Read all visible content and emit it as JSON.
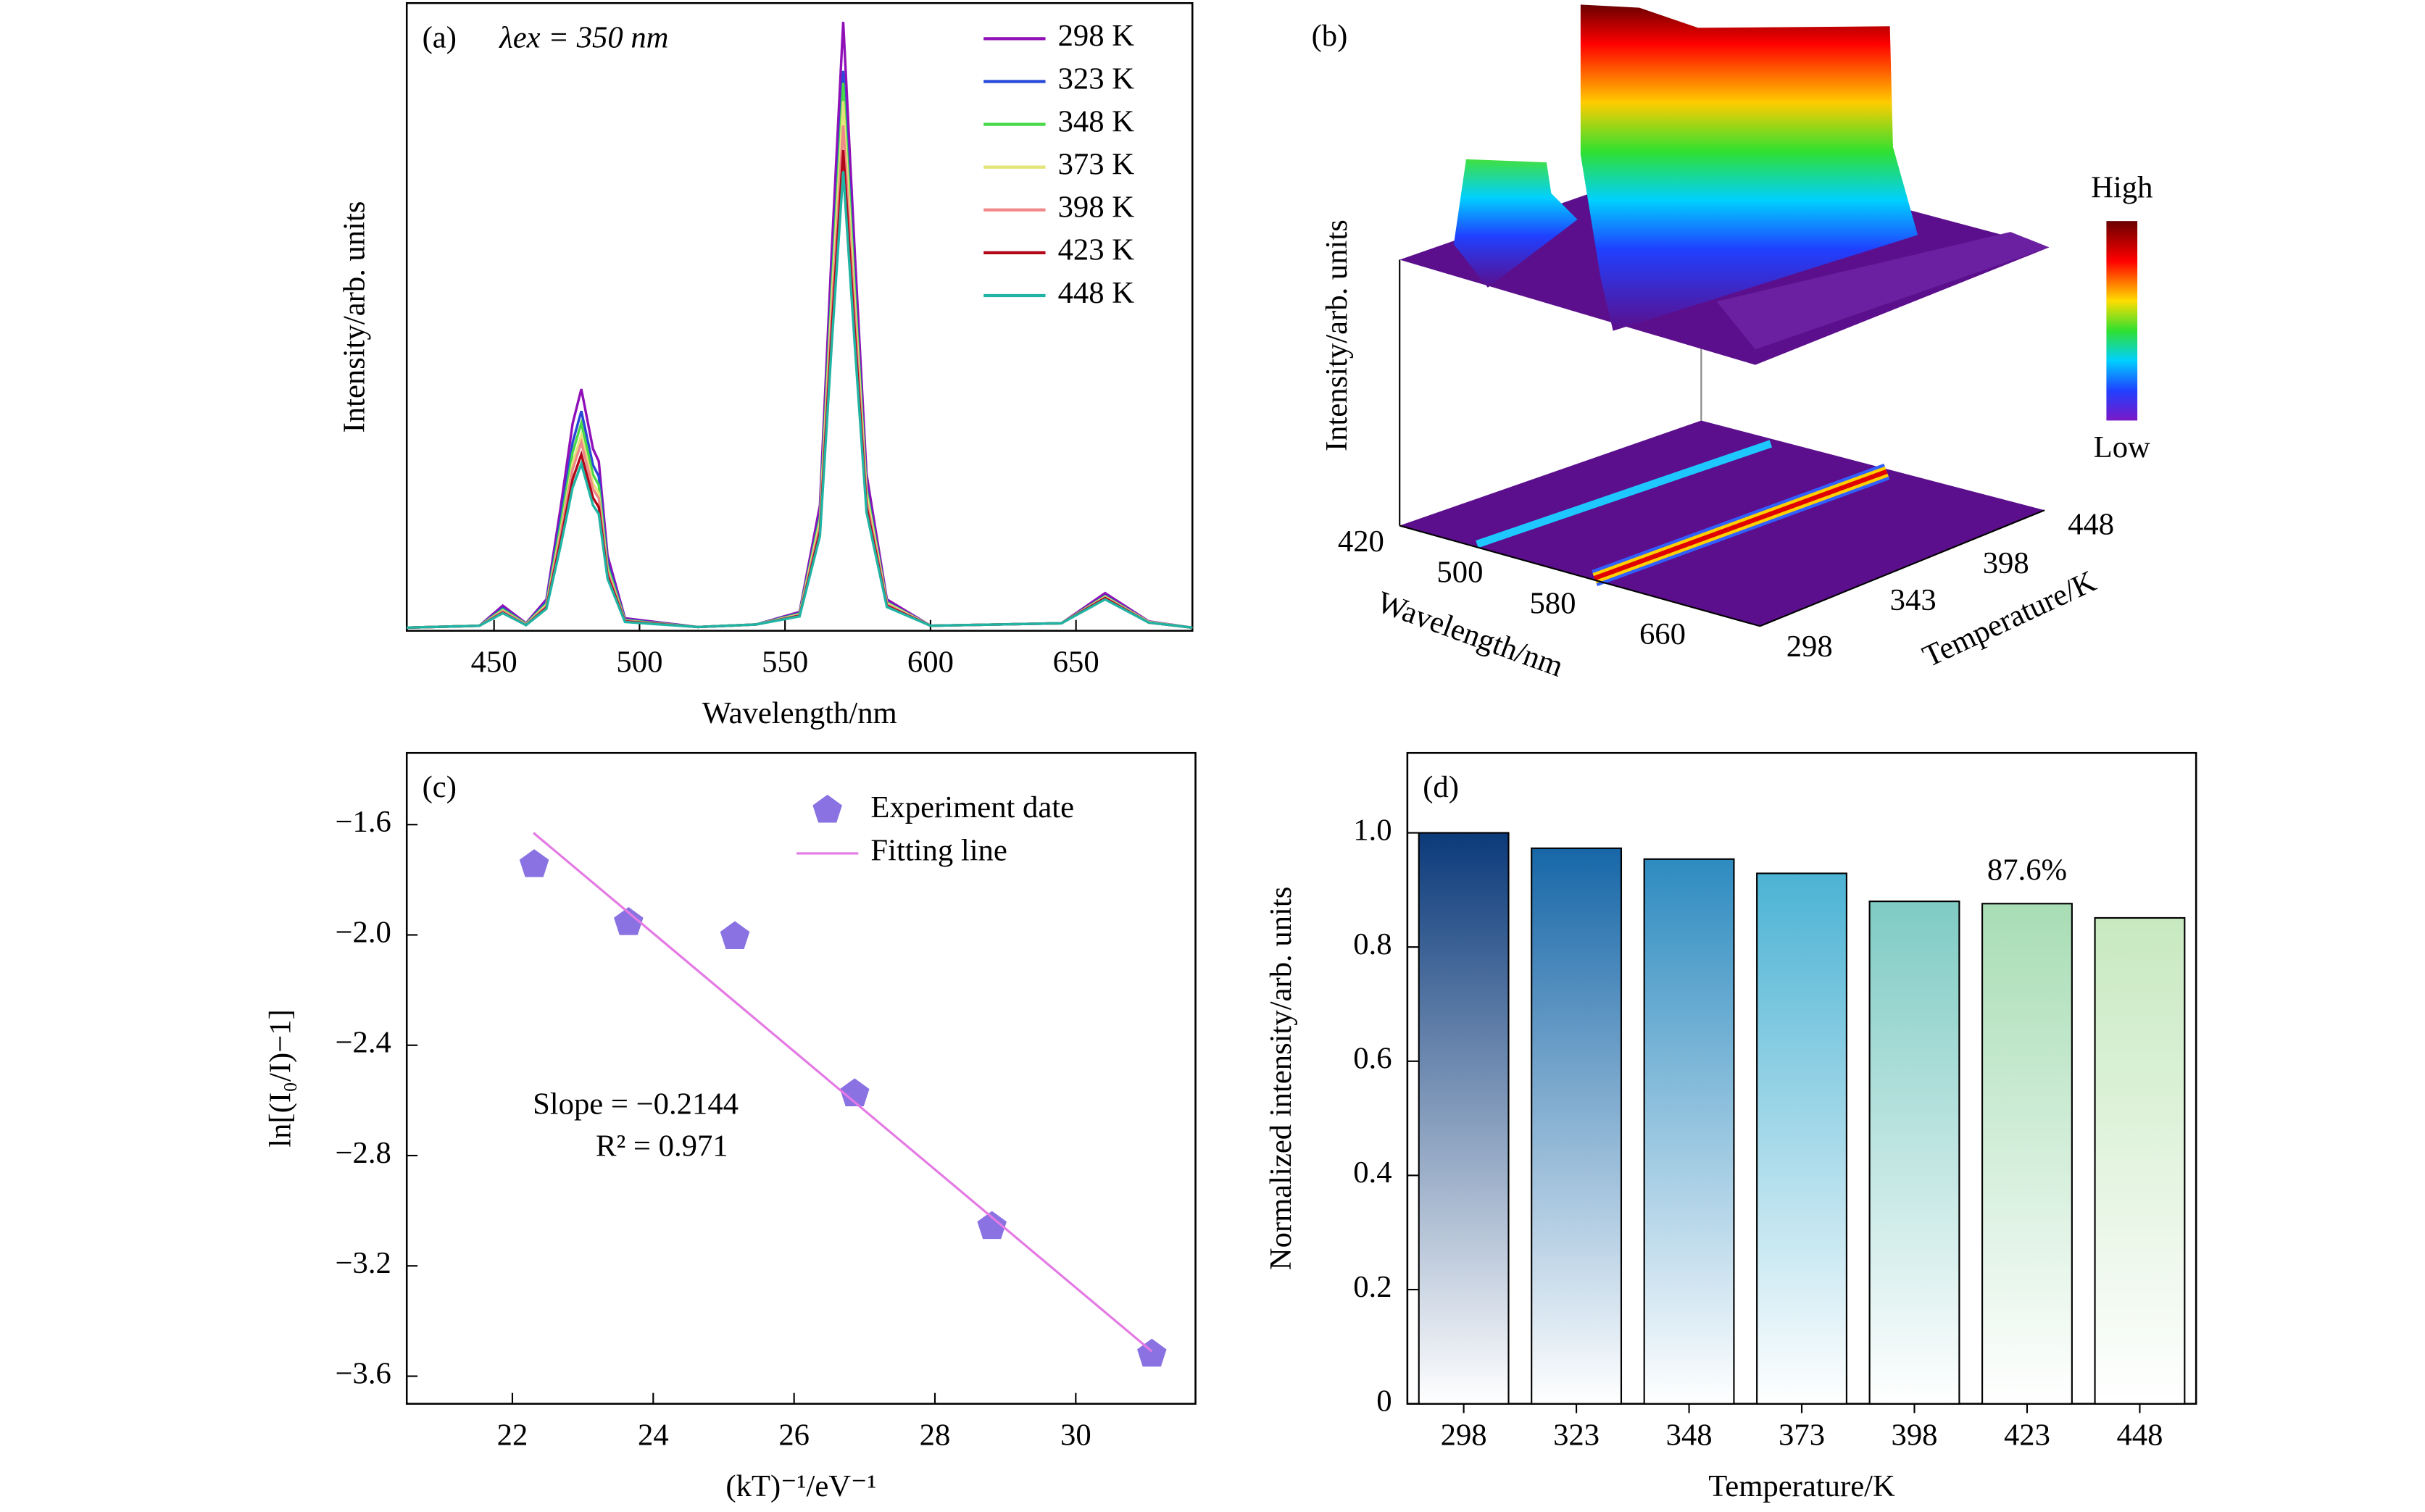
{
  "chart_data": [
    {
      "type": "line",
      "panel_label": "(a)",
      "annotation": "λex = 350 nm",
      "xlabel": "Wavelength/nm",
      "ylabel": "Intensity/arb. units",
      "x": [
        420,
        445,
        453,
        461,
        468,
        473,
        477,
        480,
        484,
        486,
        489,
        495,
        520,
        540,
        555,
        562,
        566,
        570,
        574,
        578,
        585,
        600,
        645,
        660,
        675,
        690
      ],
      "xlim": [
        420,
        690
      ],
      "xticks": [
        450,
        500,
        550,
        600,
        650
      ],
      "ylim": [
        0,
        1
      ],
      "legend": "upper right",
      "series": [
        {
          "name": "298 K",
          "color": "#9010b8",
          "values": [
            0.005,
            0.008,
            0.04,
            0.012,
            0.05,
            0.2,
            0.33,
            0.385,
            0.29,
            0.27,
            0.12,
            0.02,
            0.006,
            0.01,
            0.03,
            0.2,
            0.6,
            0.97,
            0.6,
            0.25,
            0.05,
            0.008,
            0.012,
            0.06,
            0.015,
            0.005
          ]
        },
        {
          "name": "323 K",
          "color": "#2848d8",
          "values": [
            0.005,
            0.008,
            0.036,
            0.011,
            0.046,
            0.182,
            0.3,
            0.35,
            0.264,
            0.246,
            0.109,
            0.018,
            0.006,
            0.01,
            0.028,
            0.184,
            0.552,
            0.892,
            0.552,
            0.23,
            0.046,
            0.008,
            0.012,
            0.056,
            0.014,
            0.005
          ]
        },
        {
          "name": "348 K",
          "color": "#48d848",
          "values": [
            0.005,
            0.008,
            0.034,
            0.011,
            0.043,
            0.172,
            0.284,
            0.331,
            0.249,
            0.232,
            0.103,
            0.017,
            0.006,
            0.01,
            0.027,
            0.18,
            0.54,
            0.873,
            0.54,
            0.225,
            0.045,
            0.008,
            0.012,
            0.055,
            0.014,
            0.005
          ]
        },
        {
          "name": "373 K",
          "color": "#e4e47a",
          "values": [
            0.005,
            0.008,
            0.032,
            0.01,
            0.041,
            0.162,
            0.267,
            0.312,
            0.235,
            0.219,
            0.097,
            0.016,
            0.006,
            0.01,
            0.026,
            0.174,
            0.522,
            0.844,
            0.522,
            0.218,
            0.044,
            0.008,
            0.012,
            0.054,
            0.014,
            0.005
          ]
        },
        {
          "name": "398 K",
          "color": "#f08888",
          "values": [
            0.005,
            0.008,
            0.031,
            0.01,
            0.039,
            0.156,
            0.257,
            0.3,
            0.226,
            0.211,
            0.094,
            0.016,
            0.006,
            0.01,
            0.025,
            0.166,
            0.498,
            0.805,
            0.498,
            0.208,
            0.042,
            0.008,
            0.012,
            0.053,
            0.013,
            0.005
          ]
        },
        {
          "name": "423 K",
          "color": "#b00818",
          "values": [
            0.005,
            0.008,
            0.029,
            0.009,
            0.037,
            0.146,
            0.241,
            0.281,
            0.212,
            0.197,
            0.088,
            0.015,
            0.006,
            0.01,
            0.024,
            0.158,
            0.474,
            0.766,
            0.474,
            0.198,
            0.04,
            0.008,
            0.012,
            0.052,
            0.013,
            0.005
          ]
        },
        {
          "name": "448 K",
          "color": "#20b4a4",
          "values": [
            0.005,
            0.008,
            0.028,
            0.009,
            0.035,
            0.138,
            0.228,
            0.266,
            0.2,
            0.186,
            0.083,
            0.014,
            0.006,
            0.01,
            0.023,
            0.151,
            0.453,
            0.732,
            0.453,
            0.189,
            0.038,
            0.008,
            0.012,
            0.05,
            0.013,
            0.005
          ]
        }
      ]
    },
    {
      "type": "surface3d",
      "panel_label": "(b)",
      "xlabel": "Wavelength/nm",
      "ylabel": "Temperature/K",
      "zlabel": "Intensity/arb. units",
      "xticks": [
        420,
        500,
        580,
        660
      ],
      "yticks": [
        298,
        343,
        398,
        448
      ],
      "colorbar_labels": [
        "High",
        "Low"
      ]
    },
    {
      "type": "scatter",
      "panel_label": "(c)",
      "xlabel": "(kT)⁻¹/eV⁻¹",
      "ylabel": "ln[(I₀/I)−1]",
      "xlim": [
        20.5,
        31.7
      ],
      "ylim": [
        -3.7,
        -1.34
      ],
      "xticks": [
        22,
        24,
        26,
        28,
        30
      ],
      "yticks": [
        {
          "value": -1.6,
          "label": "−1.6"
        },
        {
          "value": -2.0,
          "label": "−2.0"
        },
        {
          "value": -2.4,
          "label": "−2.4"
        },
        {
          "value": -2.8,
          "label": "−2.8"
        },
        {
          "value": -3.2,
          "label": "−3.2"
        },
        {
          "value": -3.6,
          "label": "−3.6"
        }
      ],
      "legend": "upper right",
      "annotations": [
        "Slope = −0.2144",
        "R² = 0.971"
      ],
      "series": [
        {
          "name": "Experiment date",
          "mode": "markers",
          "color": "#8a72e2",
          "x": [
            22.31,
            23.65,
            25.16,
            26.86,
            28.81,
            31.08
          ],
          "values": [
            -1.745,
            -1.955,
            -2.006,
            -2.576,
            -3.057,
            -3.52
          ]
        },
        {
          "name": "Fitting line",
          "mode": "line",
          "color": "#e47ae4",
          "x": [
            22.3,
            31.08
          ],
          "values": [
            -1.63,
            -3.51
          ]
        }
      ]
    },
    {
      "type": "bar",
      "panel_label": "(d)",
      "xlabel": "Temperature/K",
      "ylabel": "Normalized intensity/arb. units",
      "categories": [
        "298",
        "323",
        "348",
        "373",
        "398",
        "423",
        "448"
      ],
      "values": [
        1.0,
        0.973,
        0.954,
        0.929,
        0.88,
        0.876,
        0.851
      ],
      "value_labels": [
        null,
        null,
        null,
        null,
        null,
        "87.6%",
        null
      ],
      "colors": [
        "#0b3a7a",
        "#1767a8",
        "#2e8bc0",
        "#4cb3d4",
        "#7fcbc4",
        "#a8ddb5",
        "#c7e9c0"
      ],
      "ylim": [
        0,
        1.14
      ],
      "yticks": [
        0,
        0.2,
        0.4,
        0.6,
        0.8,
        {
          "value": 1,
          "label": "1.0"
        }
      ]
    }
  ]
}
